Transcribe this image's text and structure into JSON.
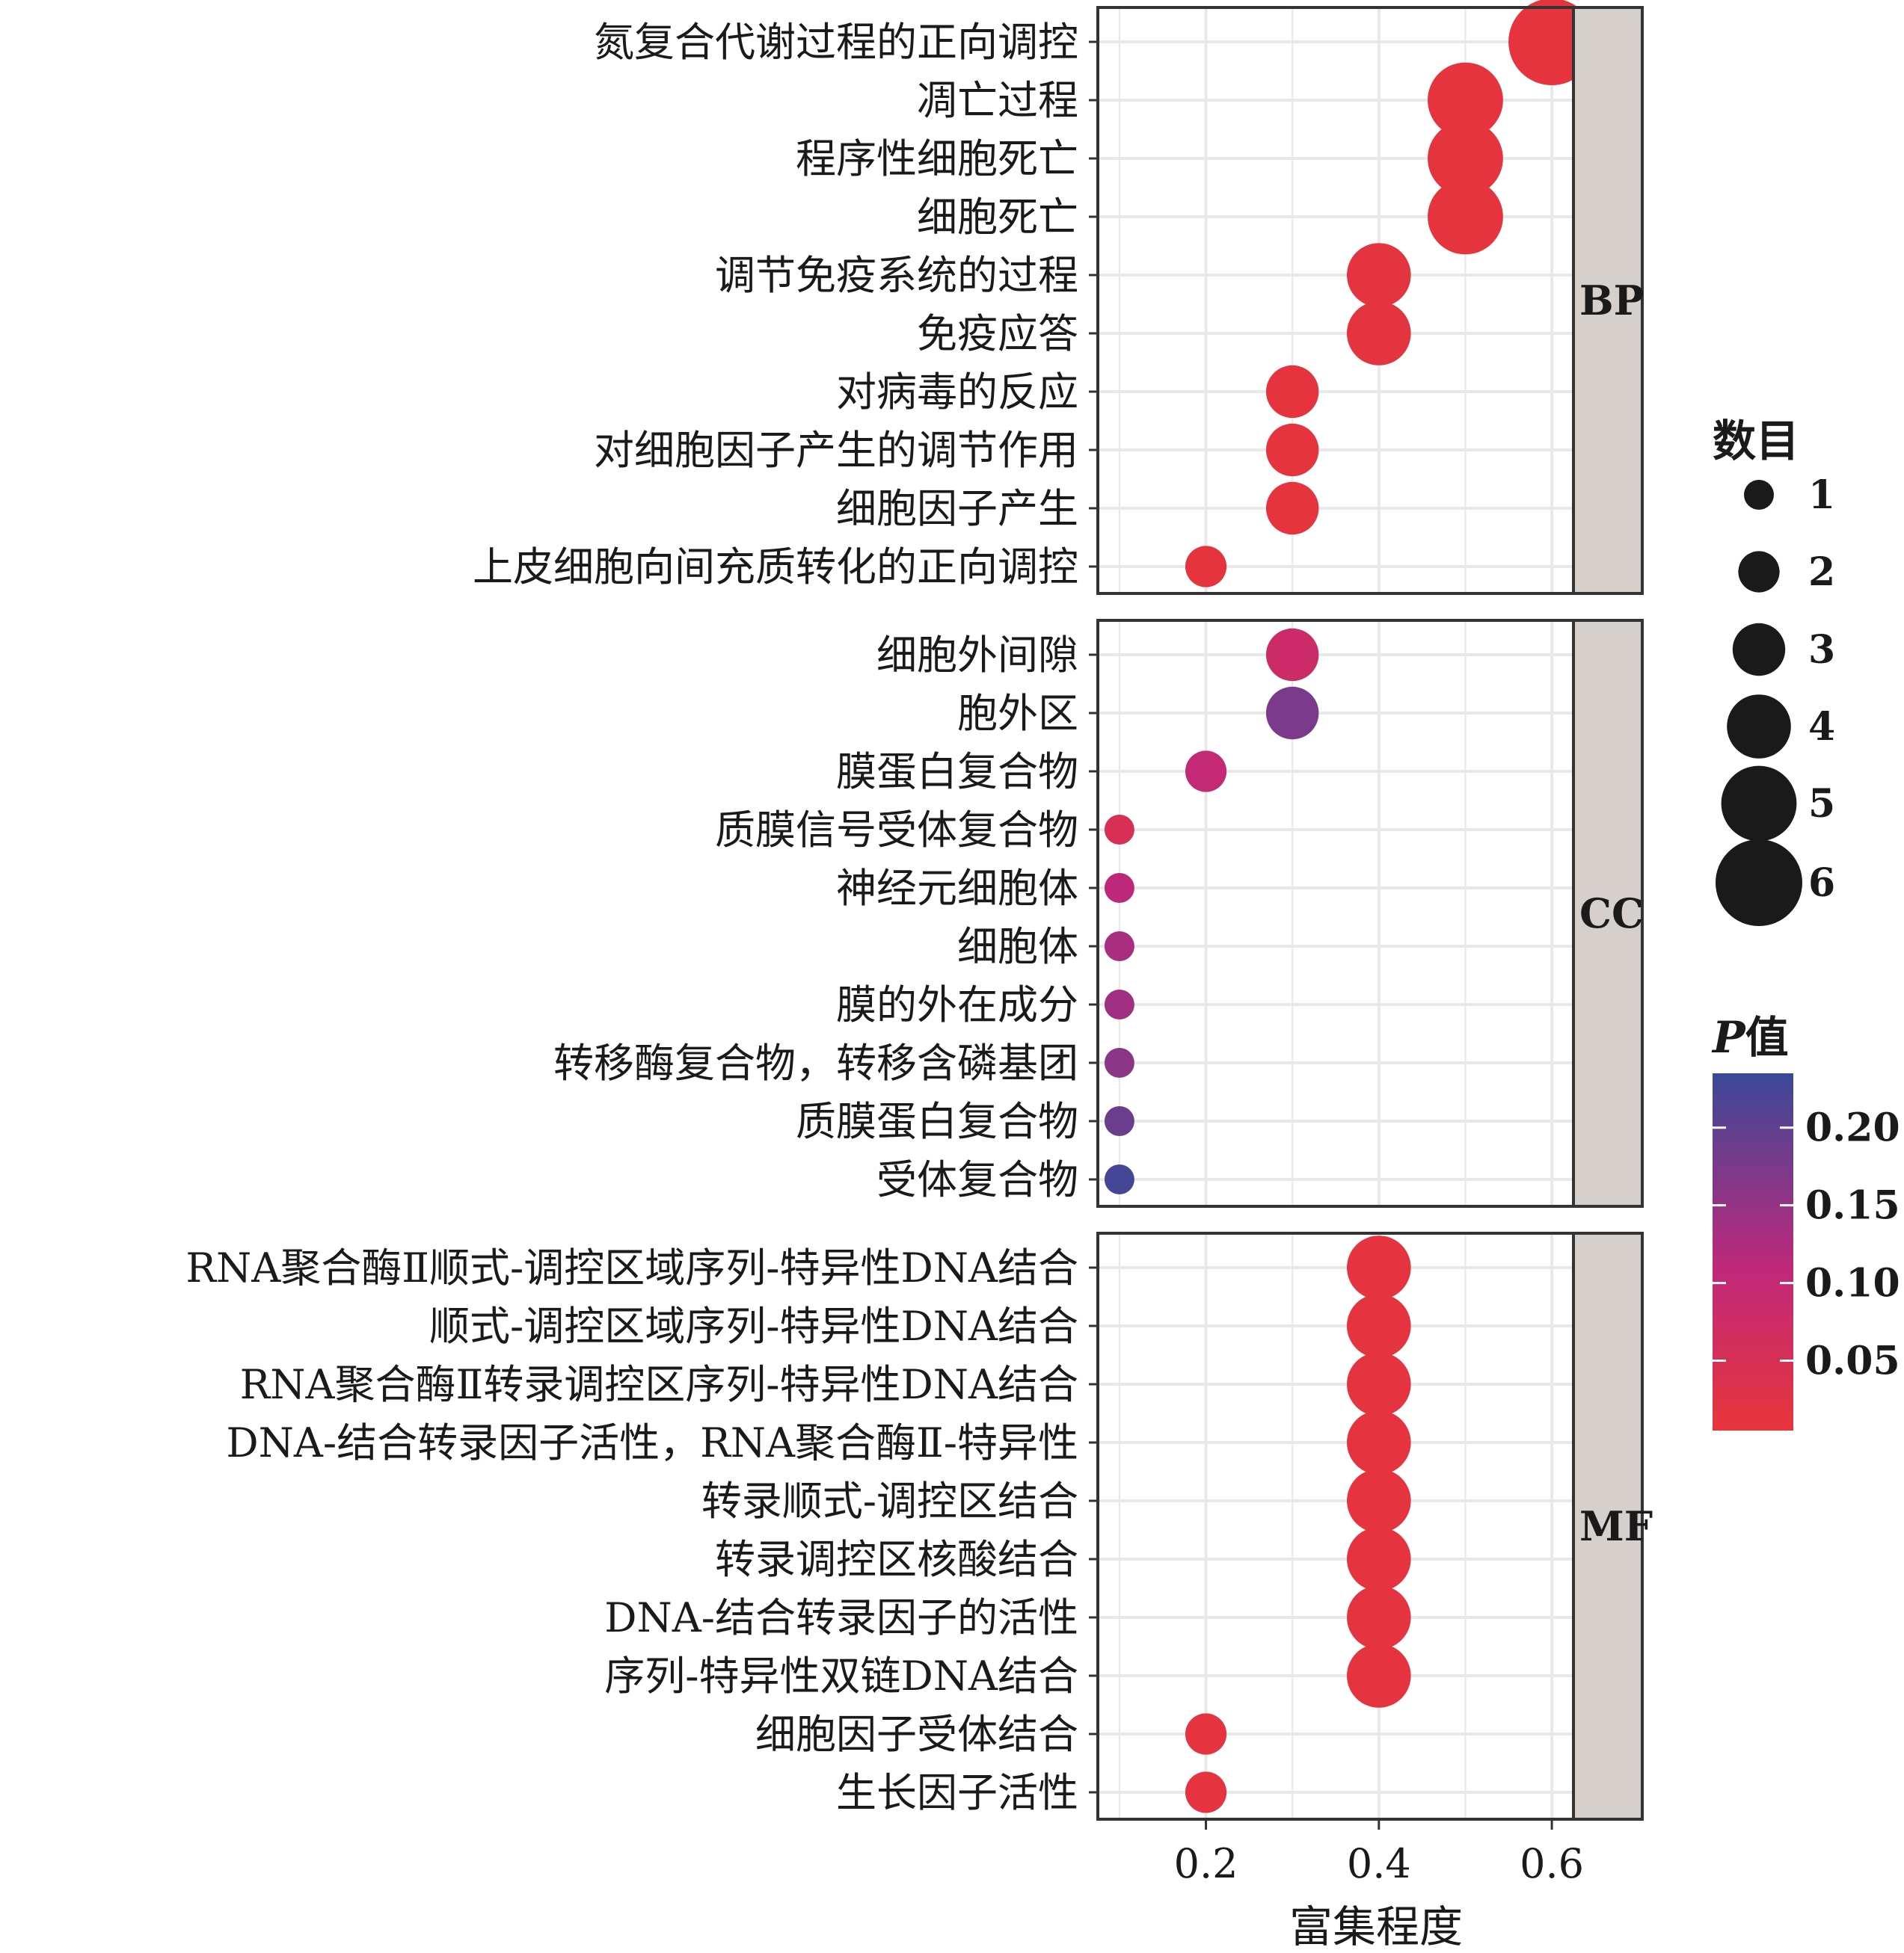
{
  "chart_data": {
    "type": "scatter",
    "subtype": "faceted-dot-plot",
    "xlabel": "富集程度",
    "xlim": [
      0.075,
      0.625
    ],
    "x_ticks": [
      0.2,
      0.4,
      0.6
    ],
    "x_tick_labels": [
      "0.2",
      "0.4",
      "0.6"
    ],
    "panels": [
      {
        "name": "BP",
        "terms": [
          {
            "label": "氮复合代谢过程的正向调控",
            "x": 0.6,
            "count": 6,
            "p": 0.012
          },
          {
            "label": "凋亡过程",
            "x": 0.5,
            "count": 5,
            "p": 0.012
          },
          {
            "label": "程序性细胞死亡",
            "x": 0.5,
            "count": 5,
            "p": 0.012
          },
          {
            "label": "细胞死亡",
            "x": 0.5,
            "count": 5,
            "p": 0.012
          },
          {
            "label": "调节免疫系统的过程",
            "x": 0.4,
            "count": 4,
            "p": 0.015
          },
          {
            "label": "免疫应答",
            "x": 0.4,
            "count": 4,
            "p": 0.015
          },
          {
            "label": "对病毒的反应",
            "x": 0.3,
            "count": 3,
            "p": 0.012
          },
          {
            "label": "对细胞因子产生的调节作用",
            "x": 0.3,
            "count": 3,
            "p": 0.012
          },
          {
            "label": "细胞因子产生",
            "x": 0.3,
            "count": 3,
            "p": 0.012
          },
          {
            "label": "上皮细胞向间充质转化的正向调控",
            "x": 0.2,
            "count": 2,
            "p": 0.012
          }
        ]
      },
      {
        "name": "CC",
        "terms": [
          {
            "label": "细胞外间隙",
            "x": 0.3,
            "count": 3,
            "p": 0.08
          },
          {
            "label": "胞外区",
            "x": 0.3,
            "count": 3,
            "p": 0.175
          },
          {
            "label": "膜蛋白复合物",
            "x": 0.2,
            "count": 2,
            "p": 0.1
          },
          {
            "label": "质膜信号受体复合物",
            "x": 0.1,
            "count": 1,
            "p": 0.05
          },
          {
            "label": "神经元细胞体",
            "x": 0.1,
            "count": 1,
            "p": 0.11
          },
          {
            "label": "细胞体",
            "x": 0.1,
            "count": 1,
            "p": 0.13
          },
          {
            "label": "膜的外在成分",
            "x": 0.1,
            "count": 1,
            "p": 0.14
          },
          {
            "label": "转移酶复合物，转移含磷基团",
            "x": 0.1,
            "count": 1,
            "p": 0.16
          },
          {
            "label": "质膜蛋白复合物",
            "x": 0.1,
            "count": 1,
            "p": 0.19
          },
          {
            "label": "受体复合物",
            "x": 0.1,
            "count": 1,
            "p": 0.225
          }
        ]
      },
      {
        "name": "MF",
        "terms": [
          {
            "label": "RNA聚合酶Ⅱ顺式-调控区域序列-特异性DNA结合",
            "x": 0.4,
            "count": 4,
            "p": 0.013
          },
          {
            "label": "顺式-调控区域序列-特异性DNA结合",
            "x": 0.4,
            "count": 4,
            "p": 0.013
          },
          {
            "label": "RNA聚合酶Ⅱ转录调控区序列-特异性DNA结合",
            "x": 0.4,
            "count": 4,
            "p": 0.013
          },
          {
            "label": "DNA-结合转录因子活性，RNA聚合酶Ⅱ-特异性",
            "x": 0.4,
            "count": 4,
            "p": 0.013
          },
          {
            "label": "转录顺式-调控区结合",
            "x": 0.4,
            "count": 4,
            "p": 0.013
          },
          {
            "label": "转录调控区核酸结合",
            "x": 0.4,
            "count": 4,
            "p": 0.013
          },
          {
            "label": "DNA-结合转录因子的活性",
            "x": 0.4,
            "count": 4,
            "p": 0.013
          },
          {
            "label": "序列-特异性双链DNA结合",
            "x": 0.4,
            "count": 4,
            "p": 0.013
          },
          {
            "label": "细胞因子受体结合",
            "x": 0.2,
            "count": 2,
            "p": 0.013
          },
          {
            "label": "生长因子活性",
            "x": 0.2,
            "count": 2,
            "p": 0.013
          }
        ]
      }
    ],
    "size_legend": {
      "title": "数目",
      "values": [
        1,
        2,
        3,
        4,
        5,
        6
      ],
      "labels": [
        "1",
        "2",
        "3",
        "4",
        "5",
        "6"
      ]
    },
    "color_legend": {
      "title_italic": "P",
      "title_rest": "值",
      "range": [
        0.005,
        0.235
      ],
      "ticks": [
        0.2,
        0.15,
        0.1,
        0.05
      ],
      "tick_labels": [
        "0.20",
        "0.15",
        "0.10",
        "0.05"
      ],
      "low_color": "#e8353a",
      "mid_color": "#c0287a",
      "high_color": "#3b4998"
    },
    "colors": {
      "panel_border": "#333333",
      "grid": "#e8e8e8",
      "strip_fill": "#d6d0cd",
      "dot_count_legend": "#1a1a1a"
    }
  }
}
